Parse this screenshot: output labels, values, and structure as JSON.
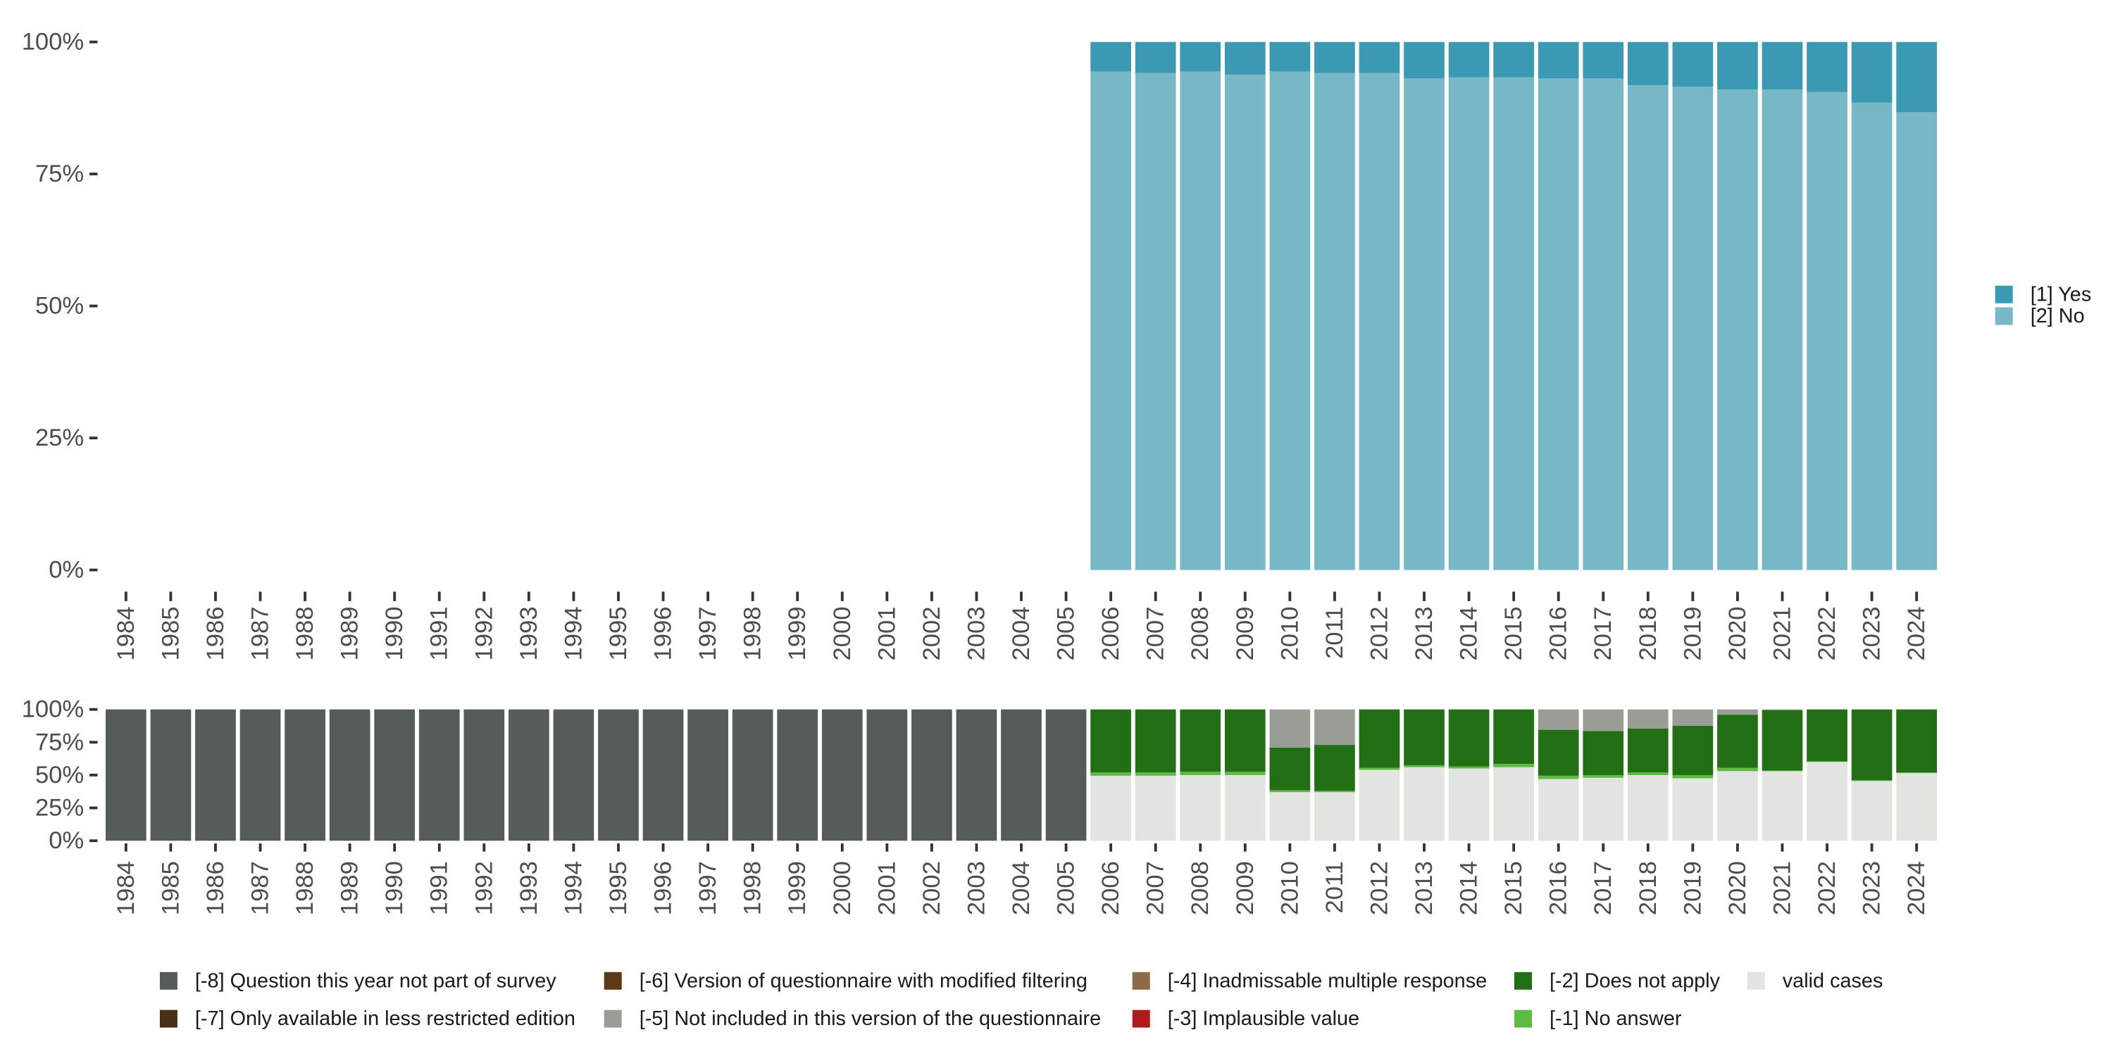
{
  "chart_data": [
    {
      "type": "bar",
      "stacked": true,
      "categories": [
        "1984",
        "1985",
        "1986",
        "1987",
        "1988",
        "1989",
        "1990",
        "1991",
        "1992",
        "1993",
        "1994",
        "1995",
        "1996",
        "1997",
        "1998",
        "1999",
        "2000",
        "2001",
        "2002",
        "2003",
        "2004",
        "2005",
        "2006",
        "2007",
        "2008",
        "2009",
        "2010",
        "2011",
        "2012",
        "2013",
        "2014",
        "2015",
        "2016",
        "2017",
        "2018",
        "2019",
        "2020",
        "2021",
        "2022",
        "2023",
        "2024"
      ],
      "y_ticks": [
        0,
        25,
        50,
        75,
        100
      ],
      "y_tick_labels": [
        "0%",
        "25%",
        "50%",
        "75%",
        "100%"
      ],
      "ylim": [
        0,
        100
      ],
      "legend_position": "right",
      "grid": false,
      "series": [
        {
          "name": "[1] Yes",
          "color": "#3b99b3",
          "values": [
            null,
            null,
            null,
            null,
            null,
            null,
            null,
            null,
            null,
            null,
            null,
            null,
            null,
            null,
            null,
            null,
            null,
            null,
            null,
            null,
            null,
            null,
            5.6,
            5.9,
            5.6,
            6.2,
            5.6,
            5.9,
            5.9,
            6.9,
            6.7,
            6.7,
            6.9,
            6.9,
            8.2,
            8.5,
            9.0,
            9.0,
            9.5,
            11.5,
            13.3
          ]
        },
        {
          "name": "[2] No",
          "color": "#78b7c5",
          "values": [
            null,
            null,
            null,
            null,
            null,
            null,
            null,
            null,
            null,
            null,
            null,
            null,
            null,
            null,
            null,
            null,
            null,
            null,
            null,
            null,
            null,
            null,
            94.4,
            94.1,
            94.4,
            93.8,
            94.4,
            94.1,
            94.1,
            93.1,
            93.3,
            93.3,
            93.1,
            93.1,
            91.8,
            91.5,
            91.0,
            91.0,
            90.5,
            88.5,
            86.7
          ]
        }
      ]
    },
    {
      "type": "bar",
      "stacked": true,
      "categories": [
        "1984",
        "1985",
        "1986",
        "1987",
        "1988",
        "1989",
        "1990",
        "1991",
        "1992",
        "1993",
        "1994",
        "1995",
        "1996",
        "1997",
        "1998",
        "1999",
        "2000",
        "2001",
        "2002",
        "2003",
        "2004",
        "2005",
        "2006",
        "2007",
        "2008",
        "2009",
        "2010",
        "2011",
        "2012",
        "2013",
        "2014",
        "2015",
        "2016",
        "2017",
        "2018",
        "2019",
        "2020",
        "2021",
        "2022",
        "2023",
        "2024"
      ],
      "y_ticks": [
        0,
        25,
        50,
        75,
        100
      ],
      "y_tick_labels": [
        "0%",
        "25%",
        "50%",
        "75%",
        "100%"
      ],
      "ylim": [
        0,
        100
      ],
      "legend_position": "bottom",
      "grid": false,
      "series": [
        {
          "name": "[-8] Question this year not part of survey",
          "color": "#565c57",
          "values": [
            100,
            100,
            100,
            100,
            100,
            100,
            100,
            100,
            100,
            100,
            100,
            100,
            100,
            100,
            100,
            100,
            100,
            100,
            100,
            100,
            100,
            100,
            0,
            0,
            0,
            0,
            0,
            0,
            0,
            0,
            0,
            0,
            0,
            0,
            0,
            0,
            0,
            0,
            0,
            0,
            0
          ]
        },
        {
          "name": "[-7] Only available in less restricted edition",
          "color": "#4b2f15",
          "values": [
            0,
            0,
            0,
            0,
            0,
            0,
            0,
            0,
            0,
            0,
            0,
            0,
            0,
            0,
            0,
            0,
            0,
            0,
            0,
            0,
            0,
            0,
            0,
            0,
            0,
            0,
            0,
            0,
            0,
            0,
            0,
            0,
            0,
            0,
            0,
            0,
            0,
            0,
            0,
            0,
            0
          ]
        },
        {
          "name": "[-6] Version of questionnaire with modified filtering",
          "color": "#5e3918",
          "values": [
            0,
            0,
            0,
            0,
            0,
            0,
            0,
            0,
            0,
            0,
            0,
            0,
            0,
            0,
            0,
            0,
            0,
            0,
            0,
            0,
            0,
            0,
            0,
            0,
            0,
            0,
            0,
            0,
            0,
            0,
            0,
            0,
            0,
            0,
            0,
            0,
            0,
            0,
            0,
            0,
            0
          ]
        },
        {
          "name": "[-5] Not included in this version of the questionnaire",
          "color": "#9a9d96",
          "values": [
            0,
            0,
            0,
            0,
            0,
            0,
            0,
            0,
            0,
            0,
            0,
            0,
            0,
            0,
            0,
            0,
            0,
            0,
            0,
            0,
            0,
            0,
            0,
            0,
            0,
            0,
            29,
            27,
            0,
            0,
            0,
            0,
            15.5,
            16.5,
            14.5,
            12.5,
            4,
            0.5,
            0,
            0,
            0
          ]
        },
        {
          "name": "[-4] Inadmissable multiple response",
          "color": "#8d6a48",
          "values": [
            0,
            0,
            0,
            0,
            0,
            0,
            0,
            0,
            0,
            0,
            0,
            0,
            0,
            0,
            0,
            0,
            0,
            0,
            0,
            0,
            0,
            0,
            0,
            0,
            0,
            0,
            0,
            0,
            0,
            0,
            0,
            0,
            0,
            0,
            0,
            0,
            0,
            0,
            0,
            0,
            0
          ]
        },
        {
          "name": "[-3] Implausible value",
          "color": "#b2191d",
          "values": [
            0,
            0,
            0,
            0,
            0,
            0,
            0,
            0,
            0,
            0,
            0,
            0,
            0,
            0,
            0,
            0,
            0,
            0,
            0,
            0,
            0,
            0,
            0,
            0,
            0,
            0,
            0,
            0,
            0,
            0,
            0,
            0,
            0,
            0,
            0,
            0,
            0,
            0,
            0,
            0,
            0
          ]
        },
        {
          "name": "[-2] Does not apply",
          "color": "#226f16",
          "values": [
            0,
            0,
            0,
            0,
            0,
            0,
            0,
            0,
            0,
            0,
            0,
            0,
            0,
            0,
            0,
            0,
            0,
            0,
            0,
            0,
            0,
            0,
            48,
            48,
            47.5,
            47.5,
            32.5,
            35,
            44.5,
            42.5,
            43.5,
            41.5,
            35,
            33.5,
            33.5,
            37.5,
            40.5,
            46,
            39.5,
            54,
            48
          ]
        },
        {
          "name": "[-1] No answer",
          "color": "#5cba45",
          "values": [
            0,
            0,
            0,
            0,
            0,
            0,
            0,
            0,
            0,
            0,
            0,
            0,
            0,
            0,
            0,
            0,
            0,
            0,
            0,
            0,
            0,
            0,
            2.5,
            2.5,
            2.5,
            2.5,
            1.5,
            1,
            1.5,
            1.5,
            1.5,
            2.5,
            2.5,
            2,
            2,
            2.5,
            2.5,
            0.5,
            0.5,
            0.5,
            0.5
          ]
        },
        {
          "name": "valid cases",
          "color": "#e1e4df",
          "values": [
            0,
            0,
            0,
            0,
            0,
            0,
            0,
            0,
            0,
            0,
            0,
            0,
            0,
            0,
            0,
            0,
            0,
            0,
            0,
            0,
            0,
            0,
            49.5,
            49.5,
            50,
            50,
            37,
            37,
            54,
            56,
            55,
            56,
            47,
            48,
            50,
            47.5,
            53,
            53,
            60,
            45.5,
            51.5
          ]
        }
      ]
    }
  ]
}
